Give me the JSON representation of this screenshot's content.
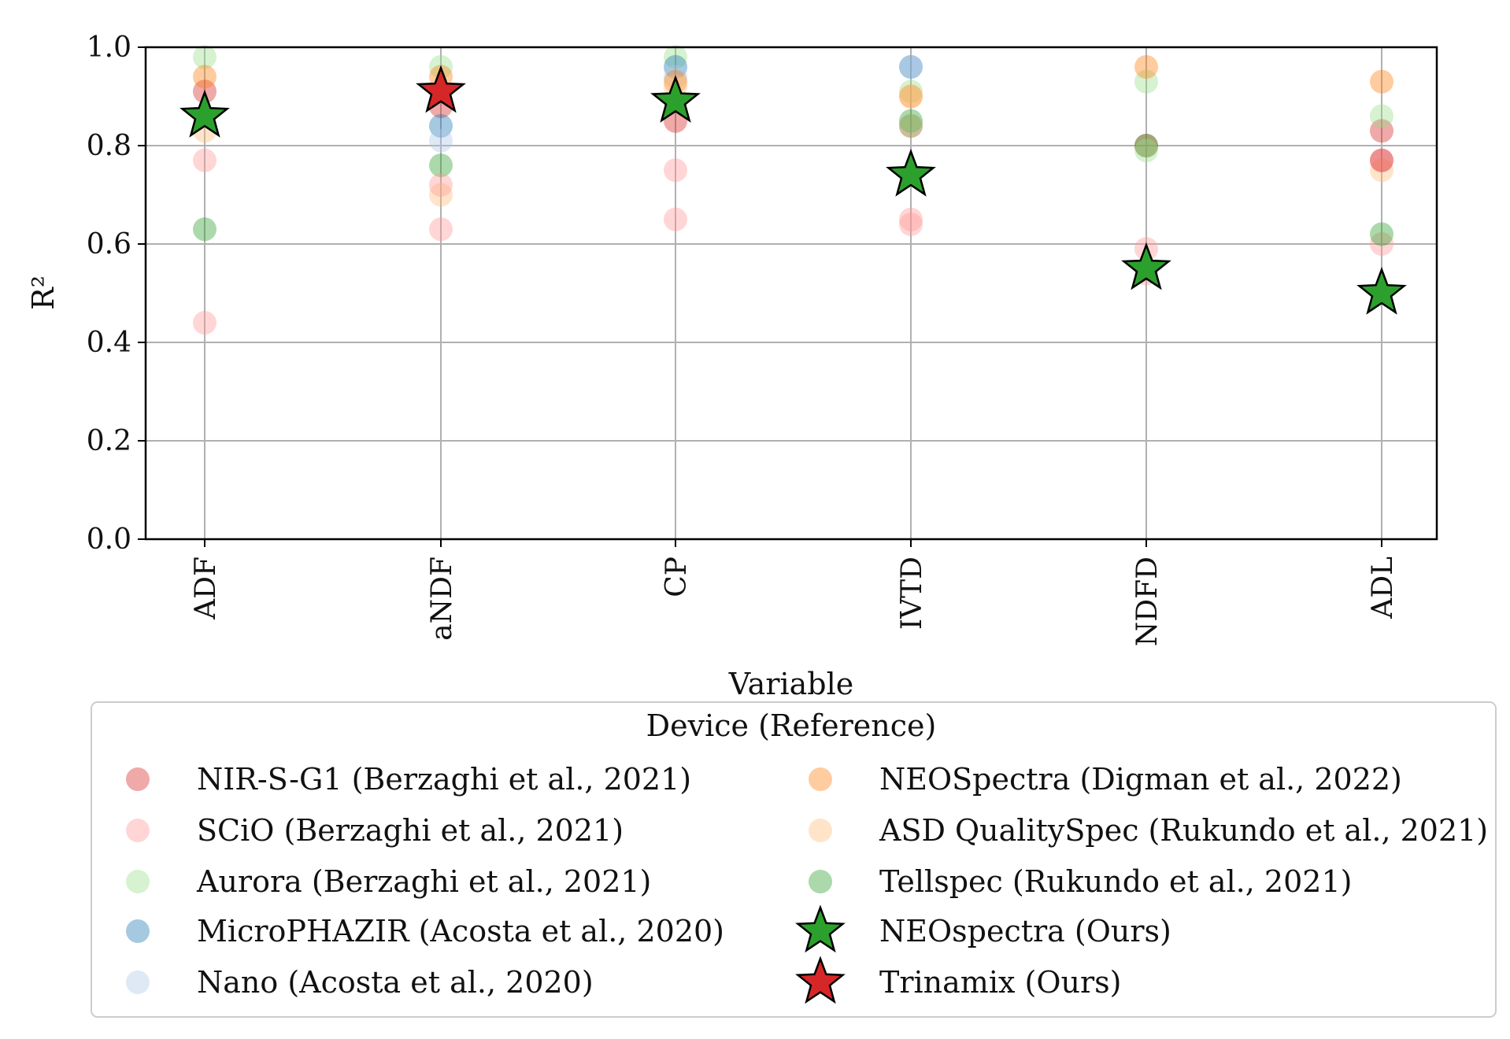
{
  "chart_data": {
    "type": "scatter",
    "title": "",
    "xlabel": "Variable",
    "ylabel": "R²",
    "categories": [
      "ADF",
      "aNDF",
      "CP",
      "IVTD",
      "NDFD",
      "ADL"
    ],
    "ylim": [
      0.0,
      1.0
    ],
    "yticks": [
      "0.0",
      "0.2",
      "0.4",
      "0.6",
      "0.8",
      "1.0"
    ],
    "grid": true,
    "legend": {
      "title": "Device (Reference)",
      "placement": "below",
      "columns": 2
    },
    "series": [
      {
        "name": "NIR-S-G1 (Berzaghi et al., 2021)",
        "color": "#d62728",
        "alpha": 0.4,
        "marker": "circle",
        "values": [
          0.91,
          0.88,
          0.85,
          0.84,
          0.8,
          0.83
        ]
      },
      {
        "name": "SCiO (Berzaghi et al., 2021)",
        "color": "#ff9896",
        "alpha": 0.4,
        "marker": "circle",
        "values": [
          0.77,
          0.63,
          0.75,
          0.65,
          0.59,
          0.6
        ]
      },
      {
        "name": "Aurora (Berzaghi et al., 2021)",
        "color": "#98df8a",
        "alpha": 0.4,
        "marker": "circle",
        "values": [
          0.98,
          0.96,
          0.98,
          0.91,
          0.93,
          0.86
        ]
      },
      {
        "name": "MicroPHAZIR (Acosta et al., 2020)",
        "color": "#1f77b4",
        "alpha": 0.4,
        "marker": "circle",
        "values": [
          null,
          0.84,
          0.96,
          0.96,
          null,
          null
        ]
      },
      {
        "name": "Nano (Acosta et al., 2020)",
        "color": "#aec7e8",
        "alpha": 0.4,
        "marker": "circle",
        "values": [
          null,
          0.81,
          0.94,
          0.96,
          null,
          null
        ]
      },
      {
        "name": "NEOSpectra (Digman et al., 2022)",
        "color": "#ff7f0e",
        "alpha": 0.4,
        "marker": "circle",
        "values": [
          0.94,
          0.94,
          0.93,
          0.9,
          0.96,
          0.93
        ]
      },
      {
        "name": "ASD QualitySpec (Rukundo et al., 2021)",
        "color": "#ffbb78",
        "alpha": 0.4,
        "marker": "circle",
        "values": [
          0.83,
          0.7,
          0.92,
          0.9,
          null,
          0.75
        ]
      },
      {
        "name": "Tellspec (Rukundo et al., 2021)",
        "color": "#2ca02c",
        "alpha": 0.4,
        "marker": "circle",
        "values": [
          0.63,
          0.76,
          null,
          0.85,
          0.8,
          0.62
        ]
      },
      {
        "name": "NEOspectra (Ours)",
        "color": "#2ca02c",
        "alpha": 1.0,
        "marker": "star",
        "values": [
          0.86,
          null,
          0.89,
          0.74,
          0.55,
          0.5
        ]
      },
      {
        "name": "Trinamix (Ours)",
        "color": "#d62728",
        "alpha": 1.0,
        "marker": "star",
        "values": [
          null,
          0.91,
          null,
          null,
          null,
          null
        ]
      }
    ],
    "extra_points": [
      {
        "series": 1,
        "category": 0,
        "value": 0.44
      },
      {
        "series": 1,
        "category": 1,
        "value": 0.72
      },
      {
        "series": 1,
        "category": 2,
        "value": 0.65
      },
      {
        "series": 1,
        "category": 3,
        "value": 0.64
      },
      {
        "series": 1,
        "category": 4,
        "value": 0.54
      },
      {
        "series": 1,
        "category": 5,
        "value": 0.77
      },
      {
        "series": 0,
        "category": 5,
        "value": 0.77
      },
      {
        "series": 2,
        "category": 3,
        "value": 0.84
      },
      {
        "series": 2,
        "category": 4,
        "value": 0.79
      }
    ]
  }
}
